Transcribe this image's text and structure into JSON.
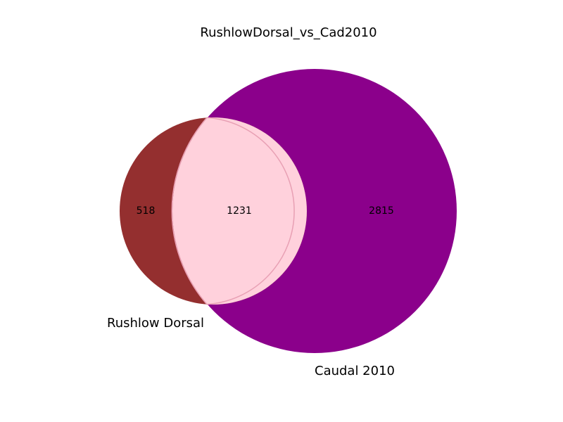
{
  "diagram": {
    "title": "RushlowDorsal_vs_Cad2010",
    "sets": [
      {
        "name": "Rushlow Dorsal",
        "color": "#942f2f"
      },
      {
        "name": "Caudal 2010",
        "color": "#8b008b"
      }
    ],
    "regions": {
      "only_a": "518",
      "intersection": "1231",
      "only_b": "2815"
    },
    "intersection_color": "#ffd1dc"
  }
}
